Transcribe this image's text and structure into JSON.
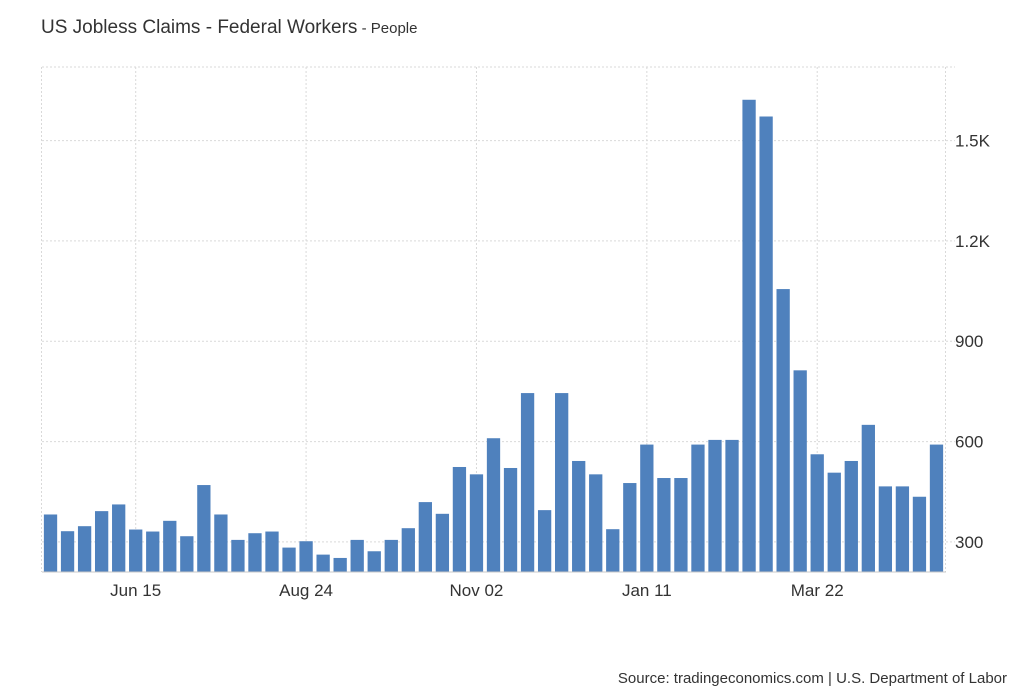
{
  "header": {
    "title": "US Jobless Claims - Federal Workers",
    "separator": " - ",
    "unit": "People"
  },
  "footer": {
    "source": "Source: tradingeconomics.com | U.S. Department of Labor"
  },
  "colors": {
    "bar": "#4f81bd",
    "grid": "#d9d9d9",
    "text": "#333333"
  },
  "chart_data": {
    "type": "bar",
    "title": "US Jobless Claims - Federal Workers",
    "subtitle": "People",
    "xlabel": "",
    "ylabel": "",
    "ylim": [
      210,
      1720
    ],
    "y_ticks": [
      300,
      600,
      900,
      1200,
      1500
    ],
    "y_tick_labels": [
      "300",
      "600",
      "900",
      "1.2K",
      "1.5K"
    ],
    "x_tick_labels": [
      {
        "index": 5,
        "label": "Jun 15"
      },
      {
        "index": 15,
        "label": "Aug 24"
      },
      {
        "index": 25,
        "label": "Nov 02"
      },
      {
        "index": 35,
        "label": "Jan 11"
      },
      {
        "index": 45,
        "label": "Mar 22"
      }
    ],
    "grid": true,
    "y_axis_position": "right",
    "values": [
      382,
      332,
      347,
      392,
      412,
      337,
      331,
      363,
      317,
      470,
      382,
      306,
      326,
      331,
      283,
      302,
      262,
      252,
      306,
      272,
      306,
      341,
      419,
      384,
      524,
      502,
      610,
      521,
      745,
      395,
      745,
      542,
      502,
      338,
      476,
      591,
      491,
      491,
      591,
      605,
      605,
      1622,
      1572,
      1056,
      813,
      562,
      507,
      542,
      650,
      466,
      466,
      435,
      591
    ]
  }
}
